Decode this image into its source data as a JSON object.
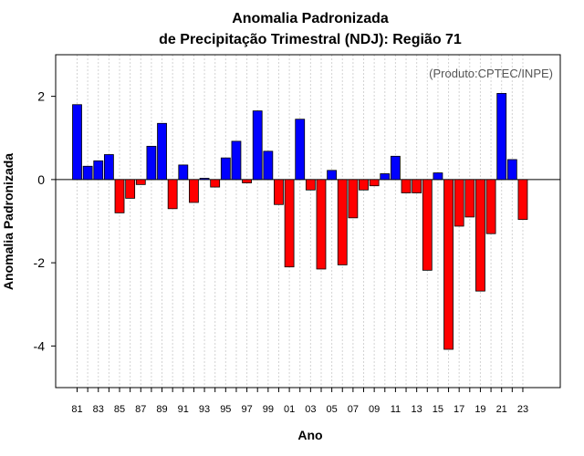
{
  "chart_data": {
    "type": "bar",
    "title": "Anomalia Padronizada",
    "subtitle": "de Precipitação Trimestral (NDJ): Região 71",
    "xlabel": "Ano",
    "ylabel": "Anomalia Padronizada",
    "annotation": "(Produto:CPTEC/INPE)",
    "ylim": [
      -5,
      3
    ],
    "yticks": [
      -4,
      -2,
      0,
      2
    ],
    "grid": "vertical-dotted",
    "positive_color": "#0000ff",
    "negative_color": "#ff0000",
    "categories": [
      "81",
      "82",
      "83",
      "84",
      "85",
      "86",
      "87",
      "88",
      "89",
      "90",
      "91",
      "92",
      "93",
      "94",
      "95",
      "96",
      "97",
      "98",
      "99",
      "00",
      "01",
      "02",
      "03",
      "04",
      "05",
      "06",
      "07",
      "08",
      "09",
      "10",
      "11",
      "12",
      "13",
      "14",
      "15",
      "16",
      "17",
      "18",
      "19",
      "20",
      "21",
      "22",
      "23"
    ],
    "tick_labels": [
      "81",
      "83",
      "85",
      "87",
      "89",
      "91",
      "93",
      "95",
      "97",
      "99",
      "01",
      "03",
      "05",
      "07",
      "09",
      "11",
      "13",
      "15",
      "17",
      "19",
      "21",
      "23"
    ],
    "values": [
      1.8,
      0.32,
      0.45,
      0.6,
      -0.8,
      -0.45,
      -0.12,
      0.8,
      1.35,
      -0.7,
      0.35,
      -0.55,
      0.03,
      -0.18,
      0.52,
      0.92,
      -0.08,
      1.65,
      0.68,
      -0.6,
      -2.1,
      1.45,
      -0.25,
      -2.15,
      0.22,
      -2.05,
      -0.92,
      -0.25,
      -0.15,
      0.14,
      0.56,
      -0.32,
      -0.32,
      -2.18,
      0.16,
      -4.08,
      -1.12,
      -0.9,
      -2.68,
      -1.3,
      2.07,
      0.48,
      -0.96
    ]
  }
}
